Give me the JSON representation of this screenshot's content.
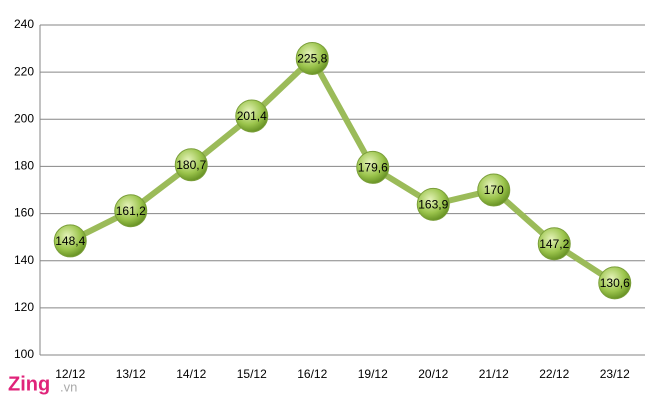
{
  "chart_data": {
    "type": "line",
    "categories": [
      "12/12",
      "13/12",
      "14/12",
      "15/12",
      "16/12",
      "19/12",
      "20/12",
      "21/12",
      "22/12",
      "23/12"
    ],
    "series": [
      {
        "color": "#9bbb59",
        "values": [
          148.4,
          161.2,
          180.7,
          201.4,
          225.8,
          179.6,
          163.9,
          170,
          147.2,
          130.6
        ],
        "value_labels": [
          "148,4",
          "161,2",
          "180,7",
          "201,4",
          "225,8",
          "179,6",
          "163,9",
          "170",
          "147,2",
          "130,6"
        ]
      }
    ],
    "ylim": [
      100,
      240
    ],
    "yticks": [
      100,
      120,
      140,
      160,
      180,
      200,
      220,
      240
    ],
    "grid": true,
    "watermark": {
      "brand": "Zing",
      "suffix": ".vn"
    }
  }
}
